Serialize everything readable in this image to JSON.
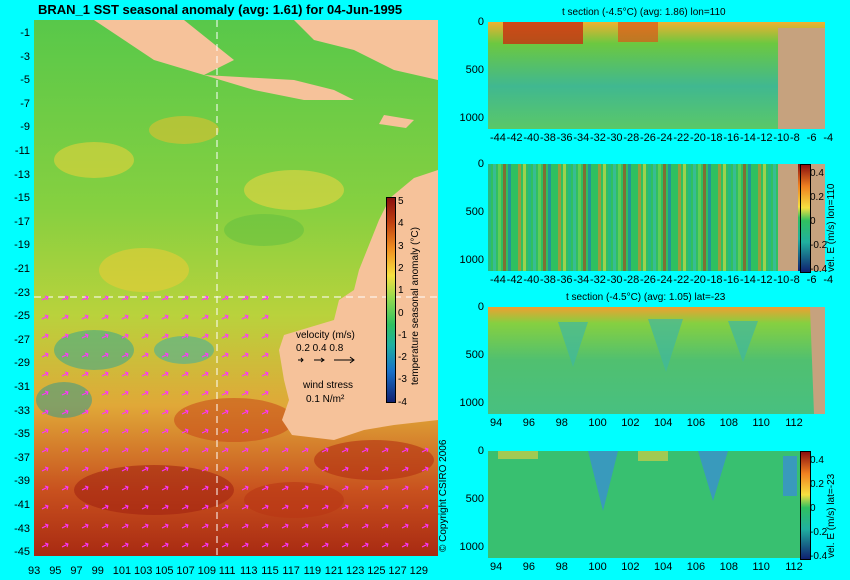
{
  "main_map": {
    "title": "BRAN_1 SST seasonal anomaly (avg: 1.61) for 04-Jun-1995",
    "lat_ticks": [
      "-1",
      "-3",
      "-5",
      "-7",
      "-9",
      "-11",
      "-13",
      "-15",
      "-17",
      "-19",
      "-21",
      "-23",
      "-25",
      "-27",
      "-29",
      "-31",
      "-33",
      "-35",
      "-37",
      "-39",
      "-41",
      "-43",
      "-45"
    ],
    "lon_ticks": [
      "93",
      "95",
      "97",
      "99",
      "101",
      "103",
      "105",
      "107",
      "109",
      "111",
      "113",
      "115",
      "117",
      "119",
      "121",
      "123",
      "125",
      "127",
      "129"
    ],
    "colorbar_ticks": [
      "5",
      "4",
      "3",
      "2",
      "1",
      "0",
      "-1",
      "-2",
      "-3",
      "-4"
    ],
    "colorbar_label": "temperature seasonal anomaly (°C)",
    "velocity_title": "velocity (m/s)",
    "velocity_scale": "0.2 0.4 0.8",
    "wind_title": "wind stress",
    "wind_scale": "0.1 N/m²",
    "copyright": "© Copyright CSIRO 2006"
  },
  "panels": [
    {
      "title": "t section (-4.5°C) (avg: 1.86) lon=110",
      "y_ticks": [
        "0",
        "500",
        "1000"
      ],
      "x_ticks": [
        "-44",
        "-42",
        "-40",
        "-38",
        "-36",
        "-34",
        "-32",
        "-30",
        "-28",
        "-26",
        "-24",
        "-22",
        "-20",
        "-18",
        "-16",
        "-14",
        "-12",
        "-10",
        "-8",
        "-6",
        "-4"
      ]
    },
    {
      "title": "",
      "y_ticks": [
        "0",
        "500",
        "1000"
      ],
      "x_ticks": [
        "-44",
        "-42",
        "-40",
        "-38",
        "-36",
        "-34",
        "-32",
        "-30",
        "-28",
        "-26",
        "-24",
        "-22",
        "-20",
        "-18",
        "-16",
        "-14",
        "-12",
        "-10",
        "-8",
        "-6",
        "-4"
      ],
      "cbar_ticks": [
        "0.4",
        "0.2",
        "0",
        "-0.2",
        "-0.4"
      ],
      "cbar_label": "vel. E (m/s) lon=110"
    },
    {
      "title": "t section (-4.5°C) (avg: 1.05) lat=-23",
      "y_ticks": [
        "0",
        "500",
        "1000"
      ],
      "x_ticks": [
        "94",
        "96",
        "98",
        "100",
        "102",
        "104",
        "106",
        "108",
        "110",
        "112"
      ]
    },
    {
      "title": "",
      "y_ticks": [
        "0",
        "500",
        "1000"
      ],
      "x_ticks": [
        "94",
        "96",
        "98",
        "100",
        "102",
        "104",
        "106",
        "108",
        "110",
        "112"
      ],
      "cbar_ticks": [
        "0.4",
        "0.2",
        "0",
        "-0.2",
        "-0.4"
      ],
      "cbar_label": "vel. E (m/s) lat=-23"
    }
  ],
  "colors": {
    "background": "#00ffff",
    "land": "#f6c29a",
    "section_land": "#c6a27e"
  }
}
